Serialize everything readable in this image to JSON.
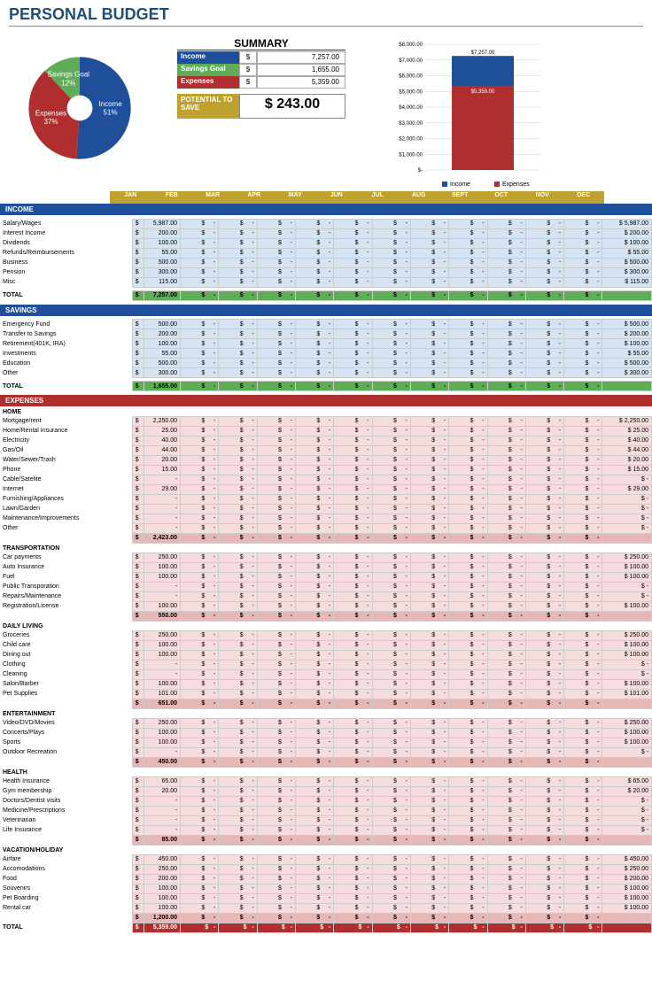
{
  "title": "PERSONAL BUDGET",
  "pie": {
    "slices": [
      {
        "label": "Income",
        "pct": "51%",
        "value": 51,
        "color": "#1f4e9b"
      },
      {
        "label": "Expenses",
        "pct": "37%",
        "value": 37,
        "color": "#b02e2e"
      },
      {
        "label": "Savings Goal",
        "pct": "12%",
        "value": 12,
        "color": "#5fad56"
      }
    ],
    "label_color": "#ffffff"
  },
  "summary": {
    "title": "SUMMARY",
    "rows": [
      {
        "label": "Income",
        "value": "7,257.00",
        "color": "#1f4e9b"
      },
      {
        "label": "Savings Goal",
        "value": "1,655.00",
        "color": "#5fad56"
      },
      {
        "label": "Expenses",
        "value": "5,359.00",
        "color": "#b02e2e"
      }
    ],
    "potential_label": "POTENTIAL TO SAVE",
    "potential_value": "$ 243.00",
    "potential_bg": "#bfa12f"
  },
  "barchart": {
    "ylim": [
      0,
      8000
    ],
    "ytick_step": 1000,
    "ylabels": [
      "$8,000.00",
      "$7,000.00",
      "$6,000.00",
      "$5,000.00",
      "$4,000.00",
      "$3,000.00",
      "$2,000.00",
      "$1,000.00",
      "$-"
    ],
    "income": {
      "label": "Income",
      "value": 7257,
      "color": "#1f4e9b",
      "display": "$7,257.00"
    },
    "expenses": {
      "label": "Expenses",
      "value": 5359,
      "color": "#b02e2e",
      "display": "$5,359.00"
    },
    "grid_color": "#d0d0d0"
  },
  "months": [
    "JAN",
    "FEB",
    "MAR",
    "APR",
    "MAY",
    "JUN",
    "JUL",
    "AUG",
    "SEPT",
    "OCT",
    "NOV",
    "DEC"
  ],
  "month_bar_color": "#bfa12f",
  "colors": {
    "income_hdr": "#1f4e9b",
    "income_bg": "#d6e3f2",
    "income_tot": "#5fad56",
    "savings_hdr": "#1f4e9b",
    "savings_bg": "#d6e3f2",
    "savings_tot": "#5fad56",
    "expenses_hdr": "#b02e2e",
    "expenses_bg": "#f6dcdc",
    "expenses_sub": "#e6b7b7",
    "expenses_grand": "#b02e2e"
  },
  "income": {
    "title": "INCOME",
    "rows": [
      {
        "label": "Salary/Wages",
        "jan": "5,987.00",
        "total": "5,987.00"
      },
      {
        "label": "Interest Income",
        "jan": "200.00",
        "total": "200.00"
      },
      {
        "label": "Dividends",
        "jan": "100.00",
        "total": "100.00"
      },
      {
        "label": "Refunds/Reimbursements",
        "jan": "55.00",
        "total": "55.00"
      },
      {
        "label": "Business",
        "jan": "500.00",
        "total": "500.00"
      },
      {
        "label": "Pension",
        "jan": "300.00",
        "total": "300.00"
      },
      {
        "label": "Misc",
        "jan": "115.00",
        "total": "115.00"
      }
    ],
    "total_label": "TOTAL",
    "total_jan": "7,257.00"
  },
  "savings": {
    "title": "SAVINGS",
    "rows": [
      {
        "label": "Emergency Fund",
        "jan": "500.00",
        "total": "500.00"
      },
      {
        "label": "Transfer to Savings",
        "jan": "200.00",
        "total": "200.00"
      },
      {
        "label": "Retirement(401K, IRA)",
        "jan": "100.00",
        "total": "100.00"
      },
      {
        "label": "Investments",
        "jan": "55.00",
        "total": "55.00"
      },
      {
        "label": "Education",
        "jan": "500.00",
        "total": "500.00"
      },
      {
        "label": "Other",
        "jan": "300.00",
        "total": "300.00"
      }
    ],
    "total_label": "TOTAL",
    "total_jan": "1,655.00"
  },
  "expenses": {
    "title": "EXPENSES",
    "groups": [
      {
        "name": "HOME",
        "rows": [
          {
            "label": "Mortgage/rent",
            "jan": "2,250.00",
            "total": "2,250.00"
          },
          {
            "label": "Home/Rental Insurance",
            "jan": "25.00",
            "total": "25.00"
          },
          {
            "label": "Electricity",
            "jan": "40.00",
            "total": "40.00"
          },
          {
            "label": "Gas/Oil",
            "jan": "44.00",
            "total": "44.00"
          },
          {
            "label": "Water/Sewer/Trash",
            "jan": "20.00",
            "total": "20.00"
          },
          {
            "label": "Phone",
            "jan": "15.00",
            "total": "15.00"
          },
          {
            "label": "Cable/Satelite",
            "jan": "",
            "total": "-"
          },
          {
            "label": "Internet",
            "jan": "29.00",
            "total": "29.00"
          },
          {
            "label": "Furnishing/Appliances",
            "jan": "",
            "total": "-"
          },
          {
            "label": "Lawn/Garden",
            "jan": "",
            "total": "-"
          },
          {
            "label": "Maintenance/Improvements",
            "jan": "",
            "total": "-"
          },
          {
            "label": "Other",
            "jan": "",
            "total": "-"
          }
        ],
        "subtotal": "2,423.00"
      },
      {
        "name": "TRANSPORTATION",
        "rows": [
          {
            "label": "Car payments",
            "jan": "250.00",
            "total": "250.00"
          },
          {
            "label": "Auto Insurance",
            "jan": "100.00",
            "total": "100.00"
          },
          {
            "label": "Fuel",
            "jan": "100.00",
            "total": "100.00"
          },
          {
            "label": "Public Transporation",
            "jan": "",
            "total": "-"
          },
          {
            "label": "Repairs/Maintenance",
            "jan": "",
            "total": "-"
          },
          {
            "label": "Registration/License",
            "jan": "100.00",
            "total": "100.00"
          }
        ],
        "subtotal": "550.00"
      },
      {
        "name": "DAILY LIVING",
        "rows": [
          {
            "label": "Groceries",
            "jan": "250.00",
            "total": "250.00"
          },
          {
            "label": "Child care",
            "jan": "100.00",
            "total": "100.00"
          },
          {
            "label": "Dining out",
            "jan": "100.00",
            "total": "100.00"
          },
          {
            "label": "Clothing",
            "jan": "",
            "total": "-"
          },
          {
            "label": "Cleaning",
            "jan": "",
            "total": "-"
          },
          {
            "label": "Salon/Barber",
            "jan": "100.00",
            "total": "100.00"
          },
          {
            "label": "Pet Supplies",
            "jan": "101.00",
            "total": "101.00"
          }
        ],
        "subtotal": "651.00"
      },
      {
        "name": "ENTERTAINMENT",
        "rows": [
          {
            "label": "Video/DVD/Movies",
            "jan": "250.00",
            "total": "250.00"
          },
          {
            "label": "Concerts/Plays",
            "jan": "100.00",
            "total": "100.00"
          },
          {
            "label": "Sports",
            "jan": "100.00",
            "total": "100.00"
          },
          {
            "label": "Outdoor Recreation",
            "jan": "",
            "total": "-"
          }
        ],
        "subtotal": "450.00"
      },
      {
        "name": "HEALTH",
        "rows": [
          {
            "label": "Health Insurance",
            "jan": "65.00",
            "total": "65.00"
          },
          {
            "label": "Gym membership",
            "jan": "20.00",
            "total": "20.00"
          },
          {
            "label": "Doctors/Dentist visits",
            "jan": "",
            "total": "-"
          },
          {
            "label": "Medicine/Prescriptions",
            "jan": "",
            "total": "-"
          },
          {
            "label": "Veterinarian",
            "jan": "",
            "total": "-"
          },
          {
            "label": "Life Insurance",
            "jan": "",
            "total": "-"
          }
        ],
        "subtotal": "85.00"
      },
      {
        "name": "VACATION/HOLIDAY",
        "rows": [
          {
            "label": "Airfare",
            "jan": "450.00",
            "total": "450.00"
          },
          {
            "label": "Accomodations",
            "jan": "250.00",
            "total": "250.00"
          },
          {
            "label": "Food",
            "jan": "200.00",
            "total": "200.00"
          },
          {
            "label": "Souvenirs",
            "jan": "100.00",
            "total": "100.00"
          },
          {
            "label": "Pet Boarding",
            "jan": "100.00",
            "total": "100.00"
          },
          {
            "label": "Rental car",
            "jan": "100.00",
            "total": "100.00"
          }
        ],
        "subtotal": "1,200.00"
      }
    ],
    "total_label": "TOTAL",
    "grand_total": "5,359.00"
  }
}
